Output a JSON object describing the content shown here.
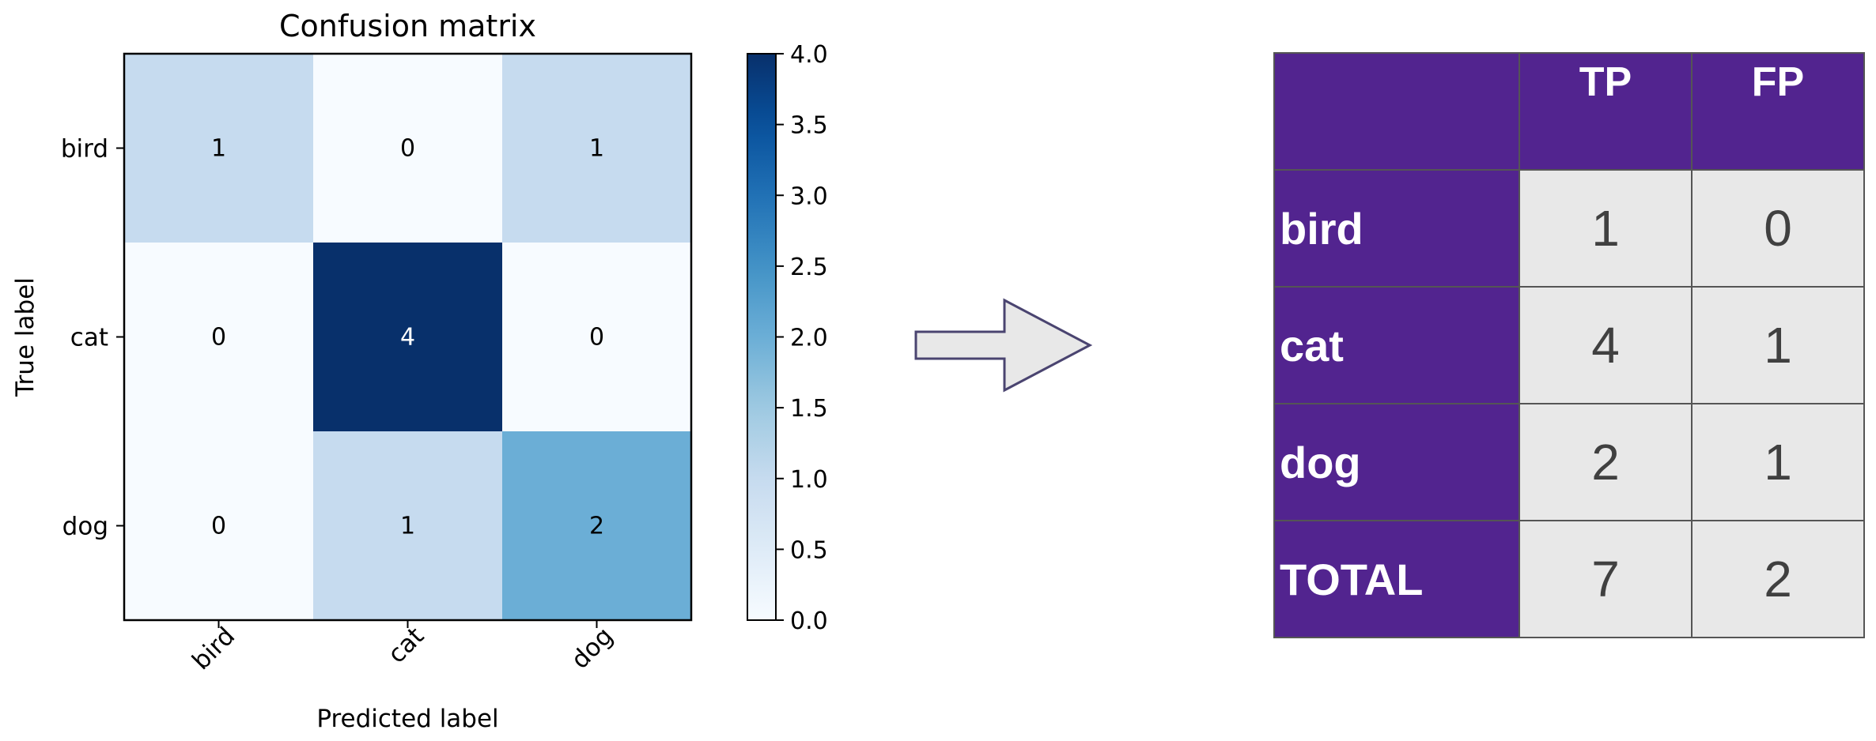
{
  "chart_data": [
    {
      "type": "heatmap",
      "title": "Confusion matrix",
      "xlabel": "Predicted label",
      "ylabel": "True label",
      "x_categories": [
        "bird",
        "cat",
        "dog"
      ],
      "y_categories": [
        "bird",
        "cat",
        "dog"
      ],
      "values": [
        [
          1,
          0,
          1
        ],
        [
          0,
          4,
          0
        ],
        [
          0,
          1,
          2
        ]
      ],
      "colormap": "Blues",
      "colorbar": {
        "range": [
          0.0,
          4.0
        ],
        "ticks": [
          "0.0",
          "0.5",
          "1.0",
          "1.5",
          "2.0",
          "2.5",
          "3.0",
          "3.5",
          "4.0"
        ]
      },
      "grid": false
    },
    {
      "type": "table",
      "columns": [
        "TP",
        "FP"
      ],
      "rows": [
        {
          "label": "bird",
          "values": [
            1,
            0
          ]
        },
        {
          "label": "cat",
          "values": [
            4,
            1
          ]
        },
        {
          "label": "dog",
          "values": [
            2,
            1
          ]
        },
        {
          "label": "TOTAL",
          "values": [
            7,
            2
          ]
        }
      ]
    }
  ],
  "colors": {
    "table_header": "#52248f",
    "table_cell": "#e8e8e8",
    "arrow_fill": "#e8e8e8",
    "arrow_stroke": "#4a4470"
  },
  "icons": {
    "arrow": "right-arrow-icon"
  }
}
